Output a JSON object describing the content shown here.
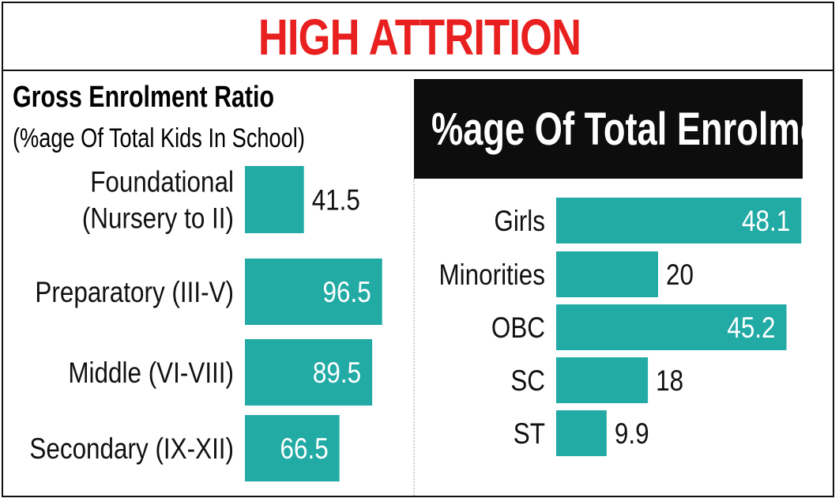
{
  "header": {
    "title": "HIGH ATTRITION"
  },
  "colors": {
    "bar": "#22aaa5",
    "title_red": "#e8201f",
    "dark": "#0d0d0d",
    "text": "#111111"
  },
  "chart_data": [
    {
      "type": "bar",
      "orientation": "horizontal",
      "title": "Gross Enrolment Ratio",
      "subtitle": "(%age Of Total Kids In School)",
      "categories": [
        [
          "Foundational",
          "(Nursery to II)"
        ],
        [
          "Preparatory (III-V)"
        ],
        [
          "Middle (VI-VIII)"
        ],
        [
          "Secondary (IX-XII)"
        ]
      ],
      "values": [
        41.5,
        96.5,
        89.5,
        66.5
      ],
      "value_labels": [
        "41.5",
        "96.5",
        "89.5",
        "66.5"
      ],
      "grid": false
    },
    {
      "type": "bar",
      "orientation": "horizontal",
      "title": "%age Of Total Enrolments",
      "categories": [
        [
          "Girls"
        ],
        [
          "Minorities"
        ],
        [
          "OBC"
        ],
        [
          "SC"
        ],
        [
          "ST"
        ]
      ],
      "values": [
        48.1,
        20,
        45.2,
        18,
        9.9
      ],
      "value_labels": [
        "48.1",
        "20",
        "45.2",
        "18",
        "9.9"
      ],
      "grid": false
    }
  ]
}
